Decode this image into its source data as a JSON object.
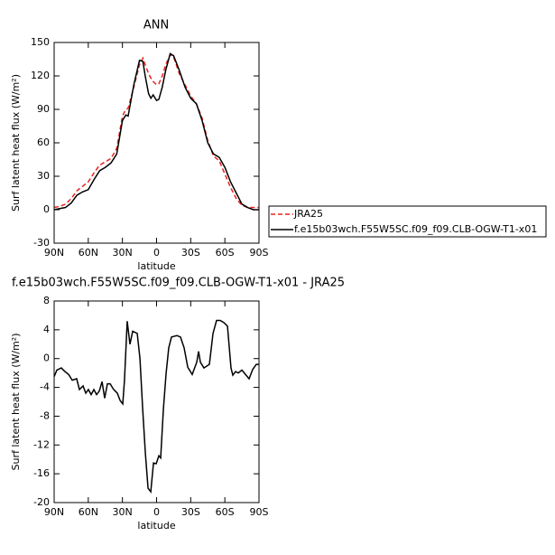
{
  "chart_data": [
    {
      "type": "line",
      "title": "ANN",
      "x_label": "latitude",
      "y_label": "Surf latent heat flux (W/m²)",
      "x": [
        90,
        85,
        80,
        75,
        70,
        65,
        60,
        55,
        50,
        45,
        40,
        35,
        30,
        27,
        25,
        20,
        15,
        12,
        10,
        7,
        5,
        3,
        0,
        -2,
        -5,
        -8,
        -12,
        -15,
        -20,
        -25,
        -30,
        -35,
        -40,
        -45,
        -50,
        -55,
        -60,
        -65,
        -70,
        -75,
        -80,
        -85,
        -90
      ],
      "series": [
        {
          "name": "JRA25",
          "color": "#e8231e",
          "line_style": "dashed",
          "values": [
            2,
            3,
            5,
            10,
            17,
            21,
            25,
            33,
            40,
            43,
            46,
            55,
            84,
            90,
            91,
            110,
            130,
            136,
            130,
            122,
            118,
            115,
            112,
            113,
            120,
            130,
            139,
            137,
            122,
            112,
            102,
            95,
            82,
            62,
            48,
            44,
            32,
            20,
            10,
            4,
            2,
            2,
            2
          ]
        },
        {
          "name": "f.e15b03wch.F55W5SC.f09_f09.CLB-OGW-T1-x01",
          "color": "#000000",
          "line_style": "solid",
          "values": [
            0,
            1,
            2,
            6,
            13,
            16,
            18,
            27,
            35,
            38,
            42,
            50,
            80,
            85,
            84,
            112,
            134,
            133,
            120,
            104,
            100,
            103,
            98,
            99,
            110,
            125,
            140,
            138,
            125,
            110,
            100,
            95,
            80,
            60,
            50,
            47,
            38,
            25,
            15,
            5,
            2,
            0,
            0
          ]
        }
      ],
      "xlim": [
        90,
        -90
      ],
      "xticks": [
        {
          "value": 90,
          "label": "90N"
        },
        {
          "value": 60,
          "label": "60N"
        },
        {
          "value": 30,
          "label": "30N"
        },
        0,
        {
          "value": -30,
          "label": "30S"
        },
        {
          "value": -60,
          "label": "60S"
        },
        {
          "value": -90,
          "label": "90S"
        }
      ],
      "ylim": [
        -30,
        150
      ],
      "yticks": [
        -30,
        0,
        30,
        60,
        90,
        120,
        150
      ],
      "legend": "right"
    },
    {
      "type": "line",
      "title": "f.e15b03wch.F55W5SC.f09_f09.CLB-OGW-T1-x01 - JRA25",
      "x_label": "latitude",
      "y_label": "Surf latent heat flux (W/m²)",
      "x": [
        90,
        87.6,
        83.7,
        80.5,
        77.3,
        74.1,
        70.2,
        67.8,
        64.6,
        62.2,
        59.9,
        57.5,
        55.1,
        52.7,
        50.3,
        47.9,
        45.6,
        43.2,
        40.8,
        37.7,
        34.5,
        32.1,
        29.7,
        28.2,
        25.8,
        23.4,
        21.0,
        17.0,
        14.6,
        12.2,
        9.9,
        7.5,
        5.1,
        2.7,
        0.3,
        -2.0,
        -3.6,
        -6.0,
        -8.4,
        -10.7,
        -13.1,
        -17.8,
        -21.0,
        -24.2,
        -27.4,
        -31.3,
        -35.3,
        -36.9,
        -38.5,
        -41.6,
        -46.4,
        -49.6,
        -52.7,
        -55.9,
        -59.1,
        -62.3,
        -65.4,
        -67.0,
        -69.4,
        -71.8,
        -75.0,
        -78.1,
        -81.3,
        -84.5,
        -87.6,
        -90
      ],
      "values": [
        -2.5,
        -1.6,
        -1.3,
        -1.8,
        -2.2,
        -3,
        -2.8,
        -4.3,
        -3.8,
        -4.8,
        -4.3,
        -5,
        -4.3,
        -5,
        -4.5,
        -3.2,
        -5.5,
        -3.5,
        -3.5,
        -4.3,
        -4.8,
        -5.8,
        -6.3,
        -3,
        5.2,
        2,
        3.8,
        3.5,
        0,
        -7,
        -13,
        -18,
        -18.5,
        -14.5,
        -14.6,
        -13.5,
        -13.8,
        -7,
        -2,
        1.5,
        3,
        3.2,
        3,
        1.5,
        -1.2,
        -2.2,
        -0.5,
        1,
        -0.5,
        -1.3,
        -0.8,
        3.5,
        5.3,
        5.3,
        5,
        4.5,
        -1.3,
        -2.3,
        -1.8,
        -2,
        -1.6,
        -2.2,
        -2.8,
        -1.5,
        -0.8,
        -0.8
      ],
      "color": "#000000",
      "xlim": [
        90,
        -90
      ],
      "xticks": [
        {
          "value": 90,
          "label": "90N"
        },
        {
          "value": 60,
          "label": "60N"
        },
        {
          "value": 30,
          "label": "30N"
        },
        0,
        {
          "value": -30,
          "label": "30S"
        },
        {
          "value": -60,
          "label": "60S"
        },
        {
          "value": -90,
          "label": "90S"
        }
      ],
      "ylim": [
        -20,
        8
      ],
      "yticks": [
        -20,
        -16,
        -12,
        -8,
        -4,
        0,
        4,
        8
      ]
    }
  ]
}
